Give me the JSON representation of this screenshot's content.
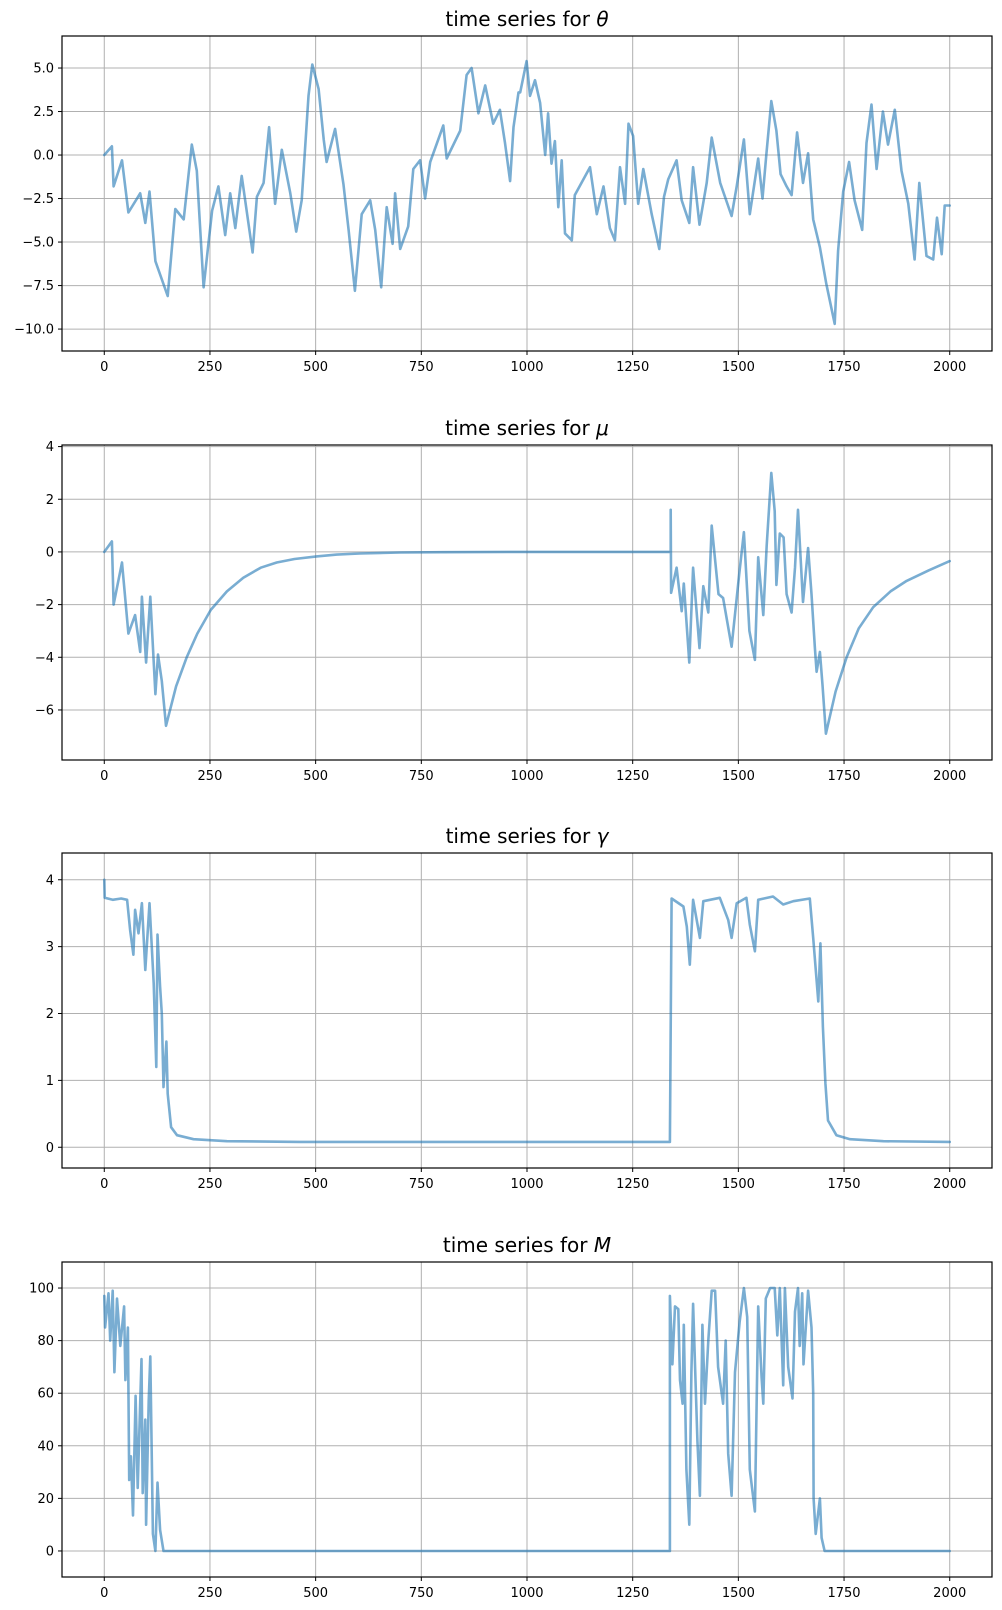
{
  "line_color": "#1f77b4",
  "line_alpha": 0.6,
  "chart_data": [
    {
      "type": "line",
      "title_prefix": "time series for ",
      "title_symbol": "θ",
      "xlabel": "",
      "ylabel": "",
      "xlim": [
        -100,
        2100
      ],
      "ylim": [
        -11.26,
        6.84
      ],
      "grid": true,
      "xticks": [
        0,
        250,
        500,
        750,
        1000,
        1250,
        1500,
        1750,
        2000
      ],
      "xtick_labels": [
        "0",
        "250",
        "500",
        "750",
        "1000",
        "1250",
        "1500",
        "1750",
        "2000"
      ],
      "yticks": [
        5,
        2.5,
        0,
        -2.5,
        -5,
        -7.5,
        -10
      ],
      "ytick_labels": [
        "5.0",
        "2.5",
        "0.0",
        "−2.5",
        "−5.0",
        "−7.5",
        "−10.0"
      ],
      "x": [
        0,
        18,
        22,
        42,
        57,
        85,
        97,
        107,
        121,
        150,
        168,
        188,
        207,
        219,
        235,
        255,
        270,
        286,
        298,
        310,
        325,
        351,
        361,
        377,
        390,
        404,
        420,
        440,
        454,
        467,
        483,
        492,
        507,
        519,
        526,
        546,
        566,
        578,
        593,
        609,
        629,
        641,
        655,
        668,
        682,
        688,
        700,
        719,
        731,
        747,
        759,
        771,
        802,
        810,
        842,
        857,
        869,
        885,
        901,
        920,
        936,
        948,
        960,
        968,
        980,
        984,
        999,
        1007,
        1019,
        1031,
        1043,
        1050,
        1058,
        1066,
        1074,
        1082,
        1090,
        1106,
        1113,
        1149,
        1165,
        1181,
        1196,
        1208,
        1220,
        1232,
        1240,
        1251,
        1263,
        1275,
        1295,
        1313,
        1324,
        1334,
        1354,
        1366,
        1384,
        1393,
        1408,
        1425,
        1437,
        1457,
        1484,
        1496,
        1513,
        1527,
        1547,
        1557,
        1566,
        1578,
        1590,
        1600,
        1614,
        1626,
        1639,
        1653,
        1665,
        1677,
        1693,
        1708,
        1728,
        1736,
        1748,
        1762,
        1775,
        1793,
        1803,
        1815,
        1827,
        1842,
        1854,
        1870,
        1886,
        1902,
        1917,
        1928,
        1945,
        1961,
        1970,
        1981,
        1988,
        2000
      ],
      "y": [
        0,
        0.5,
        -1.8,
        -0.3,
        -3.3,
        -2.2,
        -3.9,
        -2.1,
        -6.1,
        -8.1,
        -3.1,
        -3.7,
        0.6,
        -0.9,
        -7.6,
        -3.2,
        -1.8,
        -4.6,
        -2.2,
        -4.2,
        -1.2,
        -5.6,
        -2.4,
        -1.6,
        1.6,
        -2.8,
        0.3,
        -2.2,
        -4.4,
        -2.6,
        3.4,
        5.2,
        3.8,
        0.9,
        -0.4,
        1.5,
        -1.7,
        -4.3,
        -7.8,
        -3.4,
        -2.6,
        -4.3,
        -7.6,
        -3.0,
        -5.1,
        -2.2,
        -5.4,
        -4.1,
        -0.8,
        -0.3,
        -2.5,
        -0.4,
        1.7,
        -0.2,
        1.4,
        4.6,
        5.0,
        2.4,
        4.0,
        1.8,
        2.6,
        0.7,
        -1.5,
        1.6,
        3.6,
        3.6,
        5.4,
        3.4,
        4.3,
        3.0,
        0,
        2.4,
        -0.5,
        0.8,
        -3.0,
        -0.3,
        -4.5,
        -4.9,
        -2.3,
        -0.7,
        -3.4,
        -1.8,
        -4.2,
        -4.9,
        -0.7,
        -2.8,
        1.8,
        1.1,
        -2.8,
        -0.8,
        -3.4,
        -5.4,
        -2.4,
        -1.4,
        -0.3,
        -2.6,
        -3.9,
        -0.7,
        -4.0,
        -1.6,
        1.0,
        -1.6,
        -3.5,
        -1.8,
        0.9,
        -3.4,
        -0.2,
        -2.5,
        0,
        3.1,
        1.4,
        -1.1,
        -1.8,
        -2.3,
        1.3,
        -1.6,
        0.1,
        -3.7,
        -5.3,
        -7.4,
        -9.7,
        -5.5,
        -2.1,
        -0.4,
        -2.6,
        -4.3,
        0.7,
        2.9,
        -0.8,
        2.5,
        0.6,
        2.6,
        -0.9,
        -2.8,
        -6.0,
        -1.6,
        -5.8,
        -6.0,
        -3.6,
        -5.7,
        -2.9,
        -2.9
      ]
    },
    {
      "type": "line",
      "title_prefix": "time series for ",
      "title_symbol": "μ",
      "xlabel": "",
      "ylabel": "",
      "xlim": [
        -100,
        2100
      ],
      "ylim": [
        -7.9,
        4.06
      ],
      "grid": true,
      "xticks": [
        0,
        250,
        500,
        750,
        1000,
        1250,
        1500,
        1750,
        2000
      ],
      "xtick_labels": [
        "0",
        "250",
        "500",
        "750",
        "1000",
        "1250",
        "1500",
        "1750",
        "2000"
      ],
      "yticks": [
        4,
        2,
        0,
        -2,
        -4,
        -6
      ],
      "ytick_labels": [
        "4",
        "2",
        "0",
        "−2",
        "−4",
        "−6"
      ],
      "x": [
        0,
        18,
        22,
        42,
        57,
        73,
        85,
        89,
        99,
        109,
        121,
        127,
        136,
        146,
        170,
        195,
        220,
        252,
        290,
        329,
        370,
        408,
        450,
        502,
        550,
        605,
        700,
        800,
        1000,
        1200,
        1340,
        1340,
        1341,
        1354,
        1366,
        1371,
        1384,
        1393,
        1408,
        1417,
        1429,
        1437,
        1453,
        1464,
        1484,
        1502,
        1513,
        1526,
        1539,
        1547,
        1559,
        1567,
        1578,
        1586,
        1590,
        1598,
        1607,
        1614,
        1626,
        1634,
        1641,
        1653,
        1665,
        1673,
        1681,
        1685,
        1693,
        1699,
        1707,
        1730,
        1756,
        1785,
        1819,
        1860,
        1898,
        1950,
        2000
      ],
      "y": [
        0,
        0.4,
        -2.0,
        -0.4,
        -3.1,
        -2.4,
        -3.8,
        -1.7,
        -4.2,
        -1.7,
        -5.4,
        -3.9,
        -4.9,
        -6.6,
        -5.1,
        -4.0,
        -3.1,
        -2.2,
        -1.5,
        -0.98,
        -0.6,
        -0.4,
        -0.27,
        -0.17,
        -0.1,
        -0.06,
        -0.02,
        -0.01,
        0,
        0,
        0,
        1.6,
        -1.55,
        -0.6,
        -2.25,
        -1.2,
        -4.2,
        -0.6,
        -3.65,
        -1.3,
        -2.3,
        1.0,
        -1.6,
        -1.75,
        -3.6,
        -0.85,
        0.75,
        -3.0,
        -4.1,
        -0.2,
        -2.4,
        0.25,
        3.0,
        1.55,
        -1.25,
        0.7,
        0.55,
        -1.6,
        -2.3,
        -0.6,
        1.6,
        -1.9,
        0.15,
        -1.6,
        -3.65,
        -4.55,
        -3.8,
        -5.05,
        -6.9,
        -5.3,
        -4.0,
        -2.9,
        -2.1,
        -1.5,
        -1.1,
        -0.7,
        -0.35
      ]
    },
    {
      "type": "line",
      "title_prefix": "time series for ",
      "title_symbol": "γ",
      "xlabel": "",
      "ylabel": "",
      "xlim": [
        -100,
        2100
      ],
      "ylim": [
        -0.31,
        4.4
      ],
      "grid": true,
      "xticks": [
        0,
        250,
        500,
        750,
        1000,
        1250,
        1500,
        1750,
        2000
      ],
      "xtick_labels": [
        "0",
        "250",
        "500",
        "750",
        "1000",
        "1250",
        "1500",
        "1750",
        "2000"
      ],
      "yticks": [
        4,
        3,
        2,
        1,
        0
      ],
      "ytick_labels": [
        "4",
        "3",
        "2",
        "1",
        "0"
      ],
      "x": [
        0,
        1,
        20,
        40,
        54,
        61,
        69,
        73,
        81,
        89,
        97,
        107,
        117,
        123,
        126,
        132,
        136,
        140,
        147,
        150,
        158,
        172,
        211,
        290,
        463,
        1000,
        1338,
        1342,
        1370,
        1378,
        1385,
        1393,
        1409,
        1417,
        1456,
        1476,
        1484,
        1496,
        1519,
        1527,
        1539,
        1547,
        1582,
        1606,
        1630,
        1669,
        1677,
        1689,
        1694,
        1700,
        1706,
        1712,
        1732,
        1764,
        1843,
        2000
      ],
      "y": [
        4.0,
        3.73,
        3.7,
        3.72,
        3.7,
        3.25,
        2.88,
        3.55,
        3.2,
        3.65,
        2.65,
        3.65,
        2.45,
        1.2,
        3.18,
        2.4,
        2.0,
        0.9,
        1.58,
        0.8,
        0.3,
        0.18,
        0.12,
        0.09,
        0.08,
        0.08,
        0.08,
        3.72,
        3.6,
        3.3,
        2.73,
        3.7,
        3.13,
        3.68,
        3.73,
        3.4,
        3.13,
        3.65,
        3.73,
        3.33,
        2.93,
        3.7,
        3.75,
        3.63,
        3.68,
        3.72,
        3.13,
        2.18,
        3.05,
        1.8,
        0.96,
        0.4,
        0.18,
        0.12,
        0.09,
        0.08
      ]
    },
    {
      "type": "line",
      "title_prefix": "time series for ",
      "title_symbol": "M",
      "xlabel": "",
      "ylabel": "",
      "xlim": [
        -100,
        2100
      ],
      "ylim": [
        -9.9,
        109.9
      ],
      "grid": true,
      "xticks": [
        0,
        250,
        500,
        750,
        1000,
        1250,
        1500,
        1750,
        2000
      ],
      "xtick_labels": [
        "0",
        "250",
        "500",
        "750",
        "1000",
        "1250",
        "1500",
        "1750",
        "2000"
      ],
      "yticks": [
        100,
        80,
        60,
        40,
        20,
        0
      ],
      "ytick_labels": [
        "100",
        "80",
        "60",
        "40",
        "20",
        "0"
      ],
      "x": [
        0,
        2,
        10,
        14,
        20,
        24,
        30,
        38,
        47,
        50,
        56,
        59,
        63,
        68,
        74,
        79,
        88,
        91,
        97,
        99,
        105,
        109,
        115,
        121,
        126,
        132,
        140,
        1338,
        1338,
        1344,
        1350,
        1358,
        1362,
        1368,
        1371,
        1377,
        1384,
        1389,
        1393,
        1403,
        1409,
        1415,
        1421,
        1429,
        1437,
        1445,
        1452,
        1464,
        1470,
        1476,
        1484,
        1492,
        1503,
        1513,
        1521,
        1527,
        1539,
        1547,
        1555,
        1559,
        1565,
        1575,
        1586,
        1592,
        1598,
        1606,
        1610,
        1618,
        1628,
        1634,
        1641,
        1645,
        1651,
        1654,
        1665,
        1673,
        1677,
        1678,
        1683,
        1693,
        1697,
        1704,
        2000
      ],
      "y": [
        97,
        85,
        98,
        80,
        99,
        68,
        96,
        78,
        93,
        65,
        85,
        27,
        36,
        13.5,
        59,
        24,
        73,
        22,
        50,
        10,
        57,
        74,
        6.5,
        0,
        26,
        8,
        0,
        0,
        97,
        71,
        93,
        92,
        65,
        56,
        86,
        31,
        10,
        68,
        94,
        42,
        21,
        86,
        56,
        80,
        99,
        99,
        70,
        56,
        80,
        37,
        21,
        68,
        87,
        100,
        89,
        31,
        15,
        93,
        66,
        56,
        96,
        100,
        100,
        82,
        100,
        63,
        100,
        70,
        58,
        91,
        100,
        78,
        98,
        71,
        99,
        85,
        60,
        20,
        6.5,
        20,
        5,
        0,
        0
      ]
    }
  ]
}
